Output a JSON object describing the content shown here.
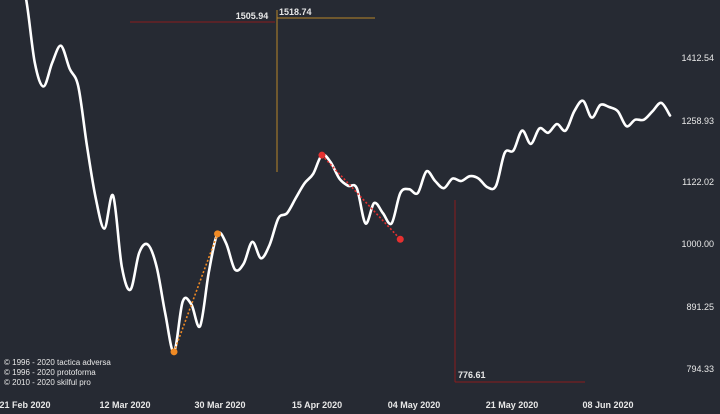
{
  "chart_data": {
    "type": "line",
    "ytick_labels": [
      "1412.54",
      "1258.93",
      "1122.02",
      "1000.00",
      "891.25",
      "794.33"
    ],
    "xtick_labels": [
      "21 Feb 2020",
      "12 Mar 2020",
      "30 Mar 2020",
      "15 Apr 2020",
      "04 May 2020",
      "21 May 2020",
      "08 Jun 2020"
    ],
    "x_dates": [
      "2020-02-21",
      "2020-03-12",
      "2020-03-30",
      "2020-04-15",
      "2020-05-04",
      "2020-05-21",
      "2020-06-08"
    ],
    "y_scale": "log",
    "ylim": [
      775,
      1700
    ],
    "series": [
      {
        "color": "#ffffff",
        "points": [
          [
            0,
            1690
          ],
          [
            1,
            1740
          ],
          [
            2,
            1660
          ],
          [
            3,
            1575
          ],
          [
            4,
            1400
          ],
          [
            5,
            1340
          ],
          [
            6,
            1400
          ],
          [
            7,
            1445
          ],
          [
            8,
            1385
          ],
          [
            9,
            1340
          ],
          [
            10,
            1200
          ],
          [
            11,
            1090
          ],
          [
            12,
            1030
          ],
          [
            13,
            1095
          ],
          [
            14,
            960
          ],
          [
            15,
            920
          ],
          [
            16,
            985
          ],
          [
            17,
            1000
          ],
          [
            18,
            960
          ],
          [
            19,
            880
          ],
          [
            20,
            820
          ],
          [
            21,
            900
          ],
          [
            22,
            895
          ],
          [
            23,
            860
          ],
          [
            24,
            950
          ],
          [
            25,
            1020
          ],
          [
            26,
            1002
          ],
          [
            27,
            955
          ],
          [
            28,
            965
          ],
          [
            29,
            1005
          ],
          [
            30,
            975
          ],
          [
            31,
            1000
          ],
          [
            32,
            1050
          ],
          [
            33,
            1060
          ],
          [
            34,
            1090
          ],
          [
            35,
            1120
          ],
          [
            36,
            1140
          ],
          [
            37,
            1180
          ],
          [
            38,
            1165
          ],
          [
            39,
            1130
          ],
          [
            40,
            1115
          ],
          [
            41,
            1110
          ],
          [
            42,
            1040
          ],
          [
            43,
            1080
          ],
          [
            44,
            1060
          ],
          [
            45,
            1040
          ],
          [
            46,
            1100
          ],
          [
            47,
            1108
          ],
          [
            48,
            1100
          ],
          [
            49,
            1145
          ],
          [
            50,
            1125
          ],
          [
            51,
            1110
          ],
          [
            52,
            1130
          ],
          [
            53,
            1125
          ],
          [
            54,
            1135
          ],
          [
            55,
            1130
          ],
          [
            56,
            1112
          ],
          [
            57,
            1115
          ],
          [
            58,
            1185
          ],
          [
            59,
            1190
          ],
          [
            60,
            1235
          ],
          [
            61,
            1205
          ],
          [
            62,
            1240
          ],
          [
            63,
            1230
          ],
          [
            64,
            1250
          ],
          [
            65,
            1235
          ],
          [
            66,
            1280
          ],
          [
            67,
            1305
          ],
          [
            68,
            1265
          ],
          [
            69,
            1295
          ],
          [
            70,
            1290
          ],
          [
            71,
            1280
          ],
          [
            72,
            1245
          ],
          [
            73,
            1260
          ],
          [
            74,
            1260
          ],
          [
            75,
            1280
          ],
          [
            76,
            1300
          ],
          [
            77,
            1270
          ]
        ]
      }
    ],
    "annotations": [
      {
        "type": "price-label",
        "label": "1505.94",
        "value": 1505.94
      },
      {
        "type": "price-label",
        "label": "1518.74",
        "value": 1518.74
      },
      {
        "type": "price-label",
        "label": "776.61",
        "value": 776.61
      }
    ],
    "trendlines": [
      {
        "color": "#f08a24",
        "from": [
          20,
          820
        ],
        "to": [
          25,
          1020
        ]
      },
      {
        "color": "#e53030",
        "from": [
          37,
          1180
        ],
        "to": [
          46,
          1010
        ]
      }
    ],
    "colors": {
      "background": "#262a33",
      "line": "#ffffff",
      "orange": "#f08a24",
      "red": "#e53030",
      "dark_red": "#8b1c1c",
      "gold": "#b8862a",
      "text": "#e8e8e8"
    },
    "copyright": [
      "© 1996 - 2020 tactica adversa",
      "© 1996 - 2020 protoforma",
      "© 2010 - 2020 skilful pro"
    ]
  }
}
